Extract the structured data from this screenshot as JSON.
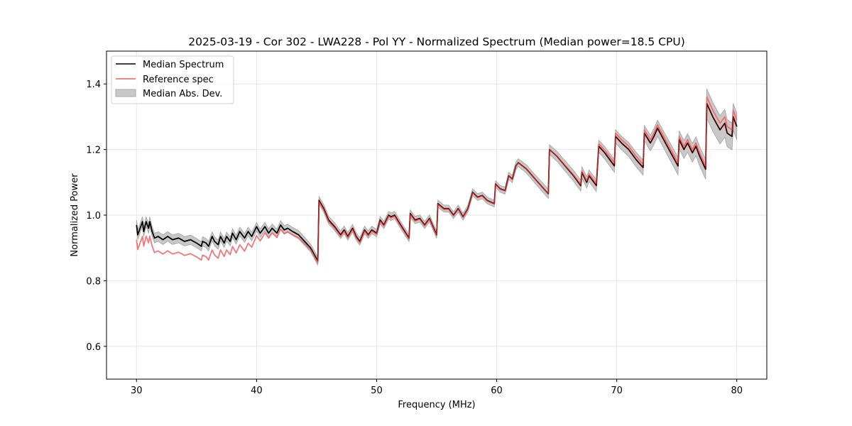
{
  "chart_data": {
    "type": "line",
    "title": "2025-03-19 - Cor 302 - LWA228 - Pol YY - Normalized Spectrum (Median power=18.5 CPU)",
    "xlabel": "Frequency (MHz)",
    "ylabel": "Normalized Power",
    "xlim": [
      27.5,
      82.5
    ],
    "ylim": [
      0.5,
      1.5
    ],
    "xticks": [
      30,
      40,
      50,
      60,
      70,
      80
    ],
    "xtick_labels": [
      "30",
      "40",
      "50",
      "60",
      "70",
      "80"
    ],
    "yticks": [
      0.6,
      0.8,
      1.0,
      1.2,
      1.4
    ],
    "ytick_labels": [
      "0.6",
      "0.8",
      "1.0",
      "1.2",
      "1.4"
    ],
    "grid": true,
    "legend_position": "top-left",
    "legend": [
      "Median Spectrum",
      "Reference spec",
      "Median Abs. Dev."
    ],
    "colors": {
      "median": "#000000",
      "reference": "#f06060",
      "mad_fill": "#c8c8c8",
      "mad_edge": "#a0a0a0",
      "grid": "#e6e6e6"
    },
    "series": [
      {
        "name": "Median Spectrum",
        "x": [
          30.0,
          30.1,
          30.3,
          30.5,
          30.6,
          30.8,
          31.0,
          31.1,
          31.3,
          31.5,
          31.8,
          32.2,
          32.6,
          33.0,
          33.5,
          34.0,
          34.5,
          35.0,
          35.4,
          35.5,
          35.8,
          36.0,
          36.3,
          36.5,
          36.8,
          37.0,
          37.3,
          37.5,
          37.8,
          38.0,
          38.3,
          38.6,
          39.0,
          39.3,
          39.6,
          40.0,
          40.3,
          40.7,
          41.0,
          41.3,
          41.7,
          42.0,
          42.3,
          42.6,
          43.0,
          43.5,
          44.0,
          44.5,
          45.1,
          45.2,
          45.6,
          46.0,
          46.5,
          47.0,
          47.3,
          47.6,
          48.0,
          48.3,
          48.6,
          49.0,
          49.3,
          49.6,
          50.0,
          50.3,
          50.6,
          51.0,
          51.2,
          51.5,
          52.0,
          52.7,
          52.8,
          53.2,
          53.6,
          54.0,
          54.4,
          55.0,
          55.1,
          55.6,
          56.0,
          56.4,
          56.8,
          57.2,
          57.6,
          58.0,
          58.4,
          58.8,
          59.2,
          59.8,
          59.9,
          60.3,
          60.7,
          61.0,
          61.3,
          61.6,
          61.8,
          62.5,
          63.2,
          64.3,
          64.4,
          65.0,
          65.7,
          66.4,
          67.0,
          67.1,
          67.5,
          67.7,
          68.3,
          68.5,
          69.0,
          69.8,
          69.9,
          70.4,
          71.0,
          71.6,
          72.2,
          72.3,
          72.8,
          73.1,
          73.4,
          74.2,
          75.1,
          75.2,
          75.6,
          75.9,
          76.3,
          76.6,
          76.9,
          77.4,
          77.5,
          78.0,
          78.6,
          79.0,
          79.2,
          79.6,
          79.7,
          80.0
        ],
        "values": [
          0.97,
          0.94,
          0.96,
          0.98,
          0.95,
          0.98,
          0.96,
          0.98,
          0.95,
          0.93,
          0.935,
          0.925,
          0.935,
          0.925,
          0.93,
          0.92,
          0.925,
          0.915,
          0.905,
          0.92,
          0.915,
          0.905,
          0.935,
          0.92,
          0.91,
          0.935,
          0.915,
          0.935,
          0.92,
          0.945,
          0.925,
          0.95,
          0.93,
          0.95,
          0.935,
          0.965,
          0.945,
          0.965,
          0.945,
          0.96,
          0.945,
          0.97,
          0.955,
          0.96,
          0.95,
          0.94,
          0.92,
          0.9,
          0.86,
          1.045,
          1.02,
          0.985,
          0.965,
          0.94,
          0.955,
          0.935,
          0.96,
          0.935,
          0.92,
          0.955,
          0.94,
          0.955,
          0.945,
          0.985,
          0.97,
          1.0,
          0.995,
          1.0,
          0.97,
          0.93,
          1.005,
          0.985,
          0.99,
          0.97,
          0.99,
          0.94,
          1.035,
          1.02,
          1.02,
          1.0,
          1.02,
          0.995,
          1.02,
          1.07,
          1.055,
          1.06,
          1.045,
          1.035,
          1.095,
          1.08,
          1.075,
          1.12,
          1.11,
          1.15,
          1.16,
          1.14,
          1.11,
          1.065,
          1.2,
          1.18,
          1.15,
          1.12,
          1.09,
          1.13,
          1.1,
          1.12,
          1.09,
          1.21,
          1.19,
          1.15,
          1.24,
          1.22,
          1.2,
          1.17,
          1.145,
          1.25,
          1.22,
          1.24,
          1.265,
          1.21,
          1.15,
          1.23,
          1.2,
          1.22,
          1.19,
          1.21,
          1.18,
          1.14,
          1.34,
          1.3,
          1.26,
          1.28,
          1.25,
          1.24,
          1.3,
          1.27
        ]
      },
      {
        "name": "Reference spec",
        "offset_note": "follows median; lower by ~0.04 below 45 MHz, nearly equal 45-65 MHz, higher by ~0.01-0.02 above 65 MHz",
        "offsets_x": [
          30,
          39,
          41,
          43,
          45,
          65,
          70,
          77.4,
          77.5,
          80
        ],
        "offsets": [
          -0.045,
          -0.04,
          -0.015,
          -0.01,
          -0.005,
          0.0,
          0.01,
          0.01,
          0.02,
          0.02
        ]
      },
      {
        "name": "Median Abs. Dev.",
        "halfwidth_x": [
          30,
          45,
          60,
          70,
          77.4,
          77.5,
          80
        ],
        "halfwidth": [
          0.015,
          0.012,
          0.01,
          0.02,
          0.03,
          0.045,
          0.04
        ]
      }
    ]
  }
}
